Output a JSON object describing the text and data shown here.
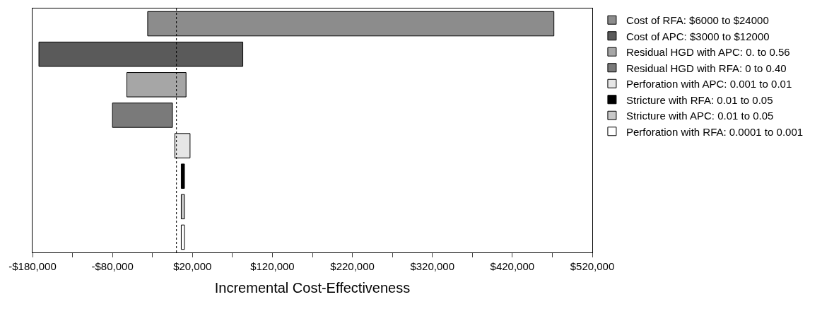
{
  "chart_data": {
    "type": "bar",
    "orientation": "horizontal",
    "categories": [
      null,
      null,
      null,
      null,
      null,
      null,
      null,
      null
    ],
    "series": [
      {
        "name": "Cost of RFA: $6000 to $24000",
        "color": "#8c8c8c",
        "values": [
          508000,
          null,
          null,
          null,
          null,
          null,
          null,
          null
        ],
        "base": [
          -36000,
          null,
          null,
          null,
          null,
          null,
          null,
          null
        ]
      },
      {
        "name": "Cost of APC: $3000 to $12000",
        "color": "#5a5a5a",
        "values": [
          null,
          255000,
          null,
          null,
          null,
          null,
          null,
          null
        ],
        "base": [
          null,
          -172000,
          null,
          null,
          null,
          null,
          null,
          null
        ]
      },
      {
        "name": "Residual HGD with APC: 0. to 0.56",
        "color": "#a6a6a6",
        "values": [
          null,
          null,
          74000,
          null,
          null,
          null,
          null,
          null
        ],
        "base": [
          null,
          null,
          -62000,
          null,
          null,
          null,
          null,
          null
        ]
      },
      {
        "name": "Residual HGD with RFA: 0 to 0.40",
        "color": "#7a7a7a",
        "values": [
          null,
          null,
          null,
          75000,
          null,
          null,
          null,
          null
        ],
        "base": [
          null,
          null,
          null,
          -80000,
          null,
          null,
          null,
          null
        ]
      },
      {
        "name": "Perforation with APC: 0.001 to 0.01",
        "color": "#e6e6e6",
        "values": [
          null,
          null,
          null,
          null,
          19000,
          null,
          null,
          null
        ],
        "base": [
          null,
          null,
          null,
          null,
          -2000,
          null,
          null,
          null
        ]
      },
      {
        "name": "Stricture with RFA: 0.01 to 0.05",
        "color": "#000000",
        "values": [
          null,
          null,
          null,
          null,
          null,
          4000,
          null,
          null
        ],
        "base": [
          null,
          null,
          null,
          null,
          null,
          6000,
          null,
          null
        ]
      },
      {
        "name": "Stricture with APC: 0.01 to 0.05",
        "color": "#c8c8c8",
        "values": [
          null,
          null,
          null,
          null,
          null,
          null,
          4000,
          null
        ],
        "base": [
          null,
          null,
          null,
          null,
          null,
          null,
          6000,
          null
        ]
      },
      {
        "name": "Perforation with RFA: 0.0001 to 0.001",
        "color": "#ffffff",
        "values": [
          null,
          null,
          null,
          null,
          null,
          null,
          null,
          4000
        ],
        "base": [
          null,
          null,
          null,
          null,
          null,
          null,
          null,
          6000
        ]
      }
    ],
    "xlabel": "Incremental Cost-Effectiveness",
    "xlim": [
      -180000,
      520000
    ],
    "xticks": [
      {
        "value": -180000,
        "label": "-$180,000"
      },
      {
        "value": -130000,
        "label": null
      },
      {
        "value": -80000,
        "label": "-$80,000"
      },
      {
        "value": -30000,
        "label": null
      },
      {
        "value": 20000,
        "label": "$20,000"
      },
      {
        "value": 70000,
        "label": null
      },
      {
        "value": 120000,
        "label": "$120,000"
      },
      {
        "value": 170000,
        "label": null
      },
      {
        "value": 220000,
        "label": "$220,000"
      },
      {
        "value": 270000,
        "label": null
      },
      {
        "value": 320000,
        "label": "$320,000"
      },
      {
        "value": 370000,
        "label": null
      },
      {
        "value": 420000,
        "label": "$420,000"
      },
      {
        "value": 470000,
        "label": null
      },
      {
        "value": 520000,
        "label": "$520,000"
      }
    ],
    "ref_lines": [
      {
        "axis": "x",
        "value": 0,
        "line_style": "dotted",
        "color": "#000000"
      }
    ],
    "tick_labels": "x",
    "legend": "top right"
  }
}
